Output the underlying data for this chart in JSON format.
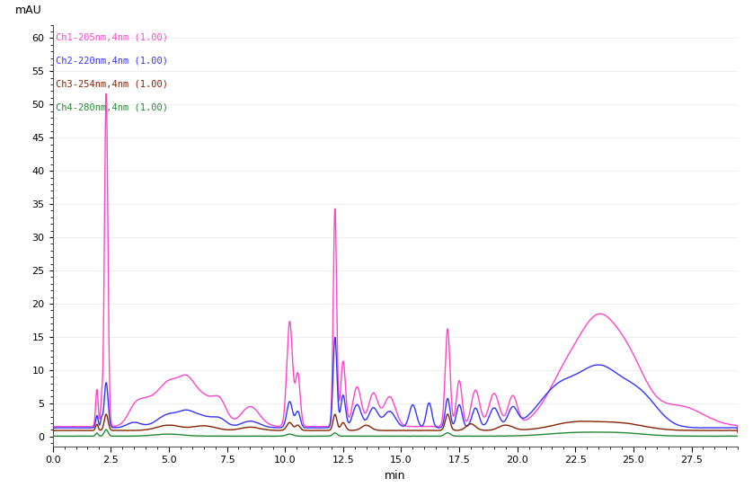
{
  "ylabel": "mAU",
  "xlabel": "min",
  "xlim": [
    0.0,
    29.5
  ],
  "ylim": [
    -1.5,
    62
  ],
  "yticks": [
    0,
    5,
    10,
    15,
    20,
    25,
    30,
    35,
    40,
    45,
    50,
    55,
    60
  ],
  "xticks": [
    0.0,
    2.5,
    5.0,
    7.5,
    10.0,
    12.5,
    15.0,
    17.5,
    20.0,
    22.5,
    25.0,
    27.5
  ],
  "channels": [
    {
      "label": "Ch1-205nm,4nm (1.00)",
      "color": "#FF44CC"
    },
    {
      "label": "Ch2-220nm,4nm (1.00)",
      "color": "#3333FF"
    },
    {
      "label": "Ch3-254nm,4nm (1.00)",
      "color": "#882200"
    },
    {
      "label": "Ch4-280nm,4nm (1.00)",
      "color": "#228833"
    }
  ],
  "background_color": "#FFFFFF"
}
